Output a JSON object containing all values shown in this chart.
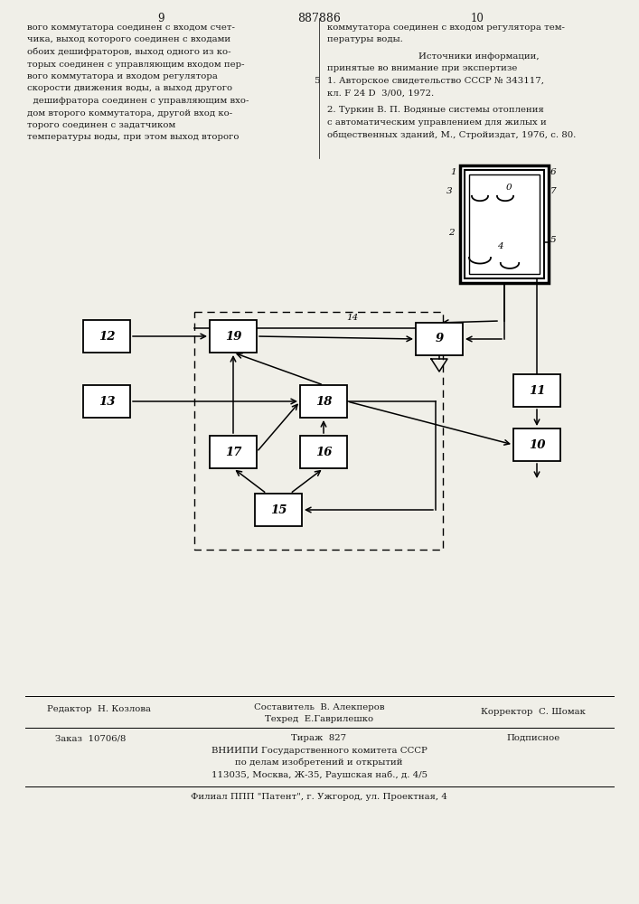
{
  "page_number_left": "9",
  "page_number_center": "887886",
  "page_number_right": "10",
  "background_color": "#f0efe8",
  "text_color": "#1a1a1a",
  "bottom_editor": "Редактор  Н. Козлова",
  "bottom_composer": "Составитель  В. Алекперов",
  "bottom_tech": "Техред  Е.Гаврилешко",
  "bottom_corrector": "Корректор  С. Шомак",
  "bottom_order": "Заказ  10706/8",
  "bottom_tirazh": "Тираж  827",
  "bottom_podpis": "Подписное",
  "bottom_vniipи": "ВНИИПИ Государственного комитета СССР",
  "bottom_dela": "по делам изобретений и открытий",
  "bottom_addr": "113035, Москва, Ж-35, Раушская наб., д. 4/5",
  "bottom_filial": "Филиал ППП \"Патент\", г. Ужгород, ул. Проектная, 4"
}
